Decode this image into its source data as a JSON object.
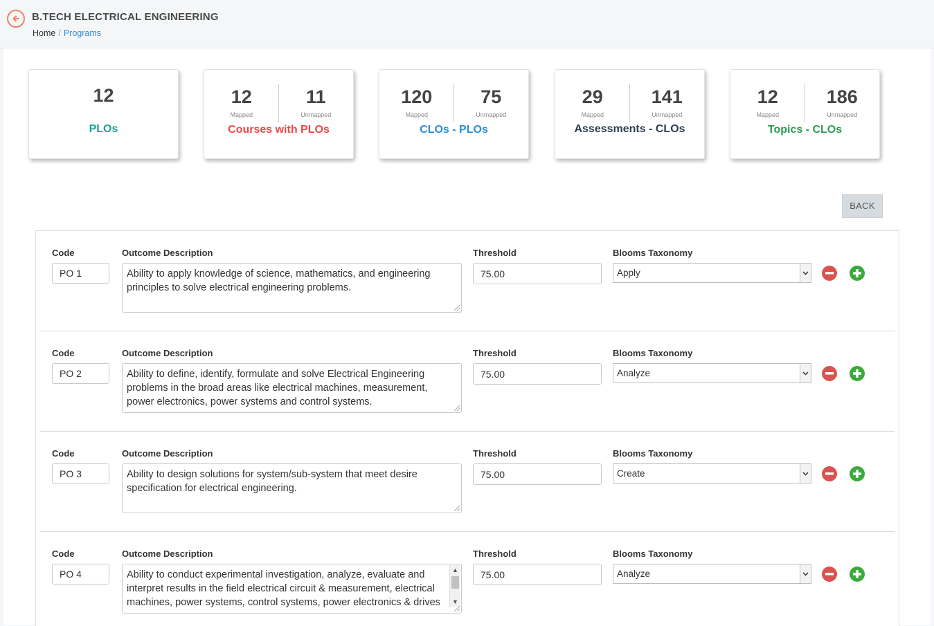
{
  "header": {
    "title": "B.TECH ELECTRICAL ENGINEERING",
    "breadcrumb": {
      "home": "Home",
      "separator": "/",
      "current": "Programs"
    }
  },
  "stats": {
    "plos": {
      "value": "12",
      "label": "PLOs",
      "color": "#1aa391"
    },
    "courses": {
      "mapped": "12",
      "unmapped": "11",
      "mapped_label": "Mapped",
      "unmapped_label": "Unmapped",
      "label": "Courses with PLOs",
      "color": "#e84b4b"
    },
    "clos_plos": {
      "mapped": "120",
      "unmapped": "75",
      "mapped_label": "Mapped",
      "unmapped_label": "Unmapped",
      "label": "CLOs - PLOs",
      "color": "#2a8fd6"
    },
    "assessments": {
      "mapped": "29",
      "unmapped": "141",
      "mapped_label": "Mapped",
      "unmapped_label": "Unmapped",
      "label": "Assessments - CLOs",
      "color": "#2c3e50"
    },
    "topics": {
      "mapped": "12",
      "unmapped": "186",
      "mapped_label": "Mapped",
      "unmapped_label": "Unmapped",
      "label": "Topics - CLOs",
      "color": "#2a9d4f"
    }
  },
  "back_button": "BACK",
  "form": {
    "labels": {
      "code": "Code",
      "description": "Outcome Description",
      "threshold": "Threshold",
      "blooms": "Blooms Taxonomy"
    },
    "rows": [
      {
        "code": "PO 1",
        "description": "Ability to apply knowledge of science, mathematics, and engineering principles to solve electrical  engineering problems.",
        "threshold": "75.00",
        "blooms": "Apply"
      },
      {
        "code": "PO 2",
        "description": "Ability to define, identify, formulate and solve Electrical Engineering problems in the broad areas like electrical machines, measurement, power electronics, power systems and control systems.",
        "threshold": "75.00",
        "blooms": "Analyze"
      },
      {
        "code": "PO 3",
        "description": "Ability to design solutions for system/sub-system that meet desire specification for electrical engineering.",
        "threshold": "75.00",
        "blooms": "Create"
      },
      {
        "code": "PO 4",
        "description": "Ability to conduct experimental investigation, analyze, evaluate and interpret results in the field electrical circuit & measurement, electrical machines, power systems, control systems, power electronics & drives",
        "threshold": "75.00",
        "blooms": "Analyze"
      }
    ]
  },
  "icons": {
    "back": "arrow-left-circle-icon",
    "remove": "minus-circle-icon",
    "add": "plus-circle-icon",
    "dropdown": "chevron-down-icon"
  },
  "colors": {
    "accent_orange": "#f0826a",
    "link_blue": "#2a8fd6",
    "remove_red": "#d9534f",
    "add_green": "#3aab3a"
  }
}
